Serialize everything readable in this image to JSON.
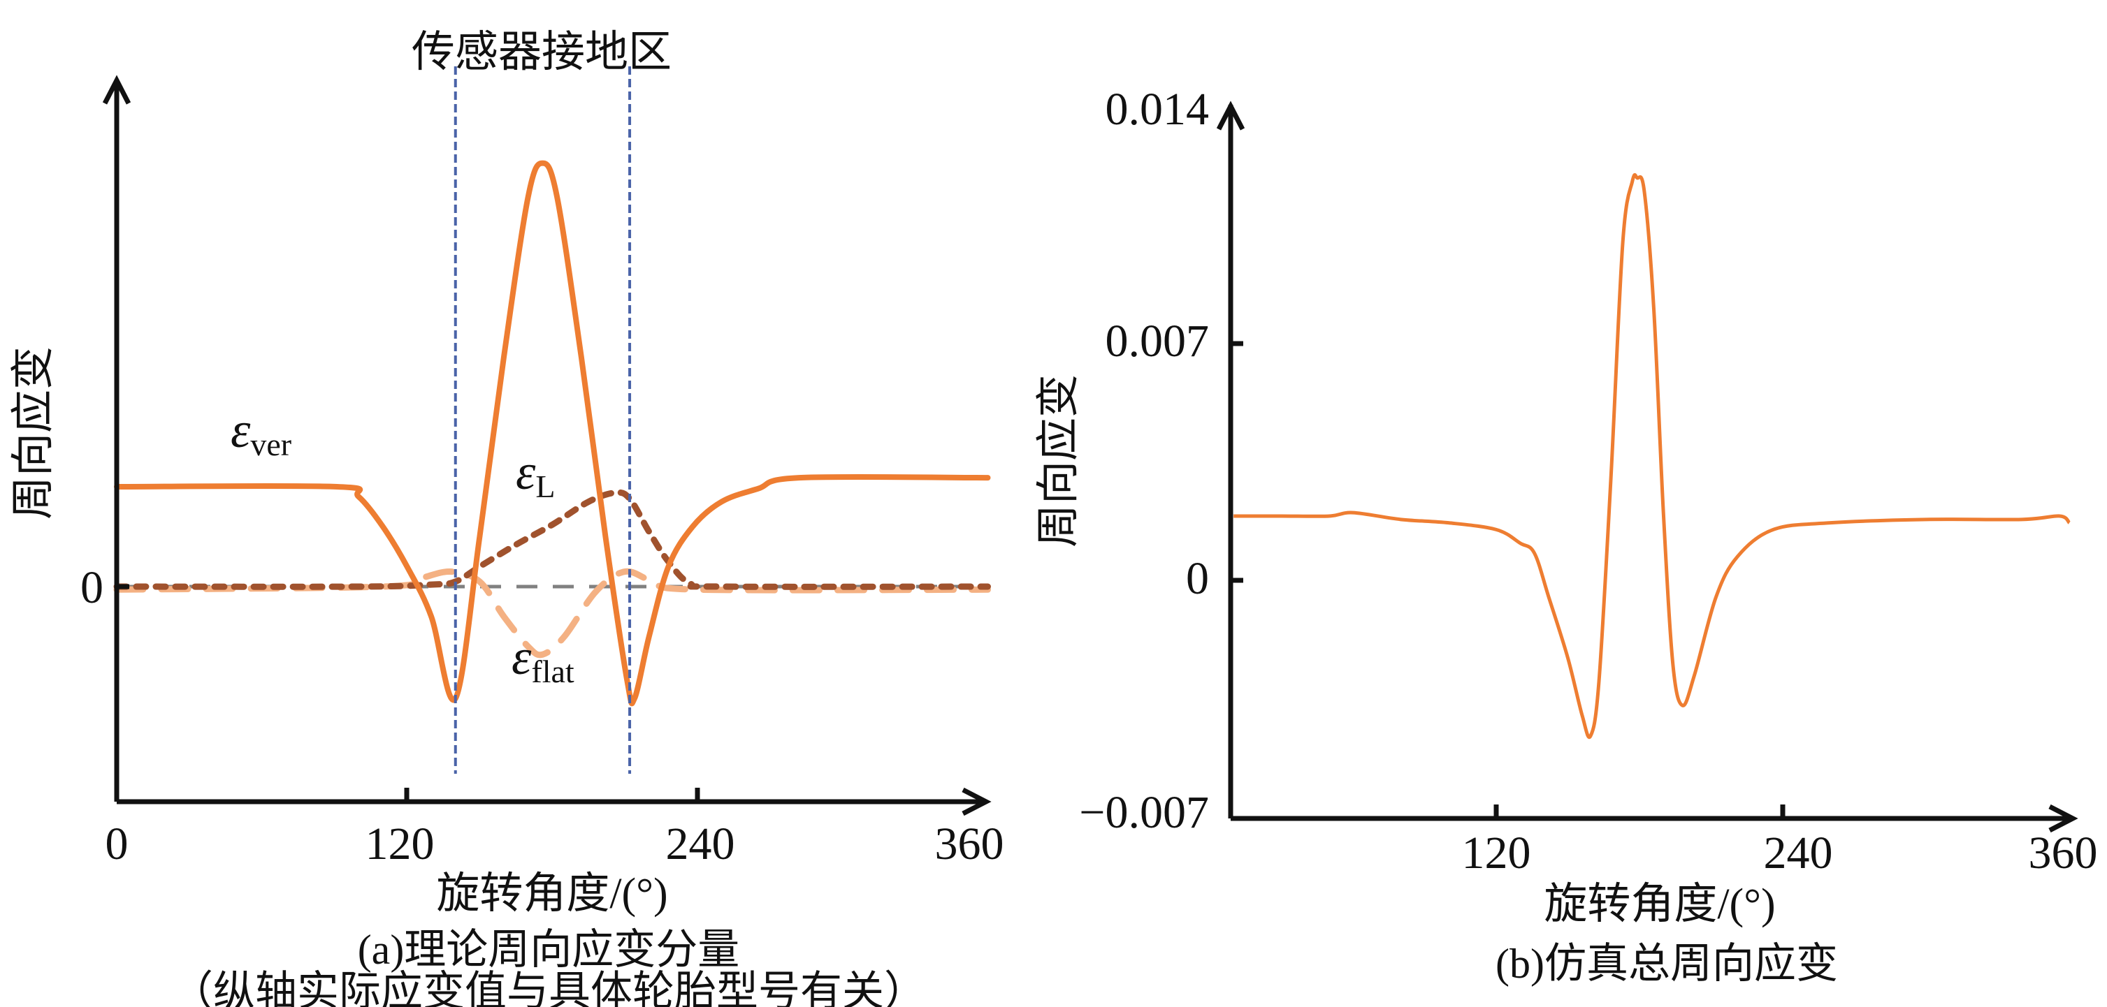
{
  "chart_data": [
    {
      "type": "line",
      "panel_caption": "(a)理论周向应变分量",
      "panel_note": "（纵轴实际应变值与具体轮胎型号有关）",
      "annotation": "传感器接地区",
      "xlabel": "旋转角度/(°)",
      "ylabel": "周向应变",
      "xlim": [
        0,
        360
      ],
      "xticks": [
        "0",
        "120",
        "240",
        "360"
      ],
      "yticks": [
        "0"
      ],
      "ylim_relative": [
        -2.15,
        5.07
      ],
      "grid": false,
      "contact_zone_deg": [
        140,
        212
      ],
      "zero_line": true,
      "series": [
        {
          "name": "ε",
          "subscript": "ver",
          "style": "solid",
          "color": "#EE7D31",
          "x": [
            0,
            91,
            100,
            110,
            120,
            130,
            140,
            150,
            160,
            170,
            176,
            182,
            192,
            202,
            211,
            214,
            220,
            228,
            238,
            250,
            265,
            282,
            360
          ],
          "y": [
            1,
            1,
            0.9,
            0.6,
            0.2,
            -0.3,
            -1.12,
            0.5,
            2.3,
            3.9,
            4.24,
            3.9,
            2.3,
            0.5,
            -0.95,
            -1.12,
            -0.5,
            0.2,
            0.6,
            0.85,
            0.98,
            1.09,
            1.09
          ]
        },
        {
          "name": "ε",
          "subscript": "L",
          "style": "dotted",
          "color": "#A0522D",
          "x": [
            0,
            100,
            130,
            140,
            150,
            165,
            180,
            195,
            206,
            212,
            220,
            228,
            237,
            250,
            360
          ],
          "y": [
            0,
            0,
            0.02,
            0.05,
            0.2,
            0.42,
            0.62,
            0.85,
            0.94,
            0.88,
            0.55,
            0.25,
            0.03,
            0,
            0
          ]
        },
        {
          "name": "ε",
          "subscript": "flat",
          "style": "dashed",
          "color": "#F4B183",
          "x": [
            0,
            110,
            125,
            138,
            150,
            160,
            170,
            176,
            185,
            198,
            210,
            222,
            240,
            360
          ],
          "y": [
            -0.03,
            0,
            0.08,
            0.15,
            0.05,
            -0.3,
            -0.6,
            -0.68,
            -0.5,
            -0.05,
            0.15,
            0.05,
            -0.03,
            -0.03
          ]
        }
      ]
    },
    {
      "type": "line",
      "panel_caption": "(b)仿真总周向应变",
      "xlabel": "旋转角度/(°)",
      "ylabel": "周向应变",
      "xlim": [
        9,
        360
      ],
      "ylim": [
        -0.007,
        0.014
      ],
      "xticks": [
        "120",
        "240",
        "360"
      ],
      "yticks": [
        "−0.007",
        "0",
        "0.007",
        "0.014"
      ],
      "grid": false,
      "series": [
        {
          "style": "solid",
          "color": "#EE7D31",
          "x": [
            10,
            30,
            50,
            60,
            80,
            100,
            120,
            130,
            136,
            142,
            150,
            156,
            159.5,
            163,
            168,
            173,
            177,
            179,
            182,
            186,
            190,
            194,
            198,
            203,
            212,
            221,
            236,
            260,
            300,
            340,
            356,
            360
          ],
          "y": [
            0.0019,
            0.0019,
            0.0019,
            0.002,
            0.0018,
            0.0017,
            0.0015,
            0.0011,
            0.0008,
            -0.0005,
            -0.0023,
            -0.004,
            -0.0046,
            -0.003,
            0.003,
            0.01,
            0.0118,
            0.0119,
            0.0115,
            0.008,
            0.002,
            -0.0025,
            -0.0037,
            -0.0028,
            -0.0005,
            0.0007,
            0.0015,
            0.0017,
            0.0018,
            0.0018,
            0.0019,
            0.0017
          ]
        }
      ]
    }
  ]
}
